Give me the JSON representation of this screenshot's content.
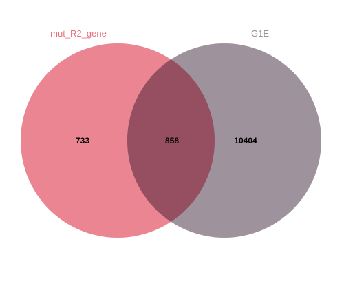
{
  "venn": {
    "sets": [
      {
        "name": "mut_R2_gene",
        "color": "#e8707f",
        "label_color": "#e8707f",
        "unique_count": "733"
      },
      {
        "name": "G1E",
        "color": "#867884",
        "label_color": "#9a9096",
        "unique_count": "10404"
      }
    ],
    "overlap_count": "858",
    "overlap_color": "#954f60"
  }
}
